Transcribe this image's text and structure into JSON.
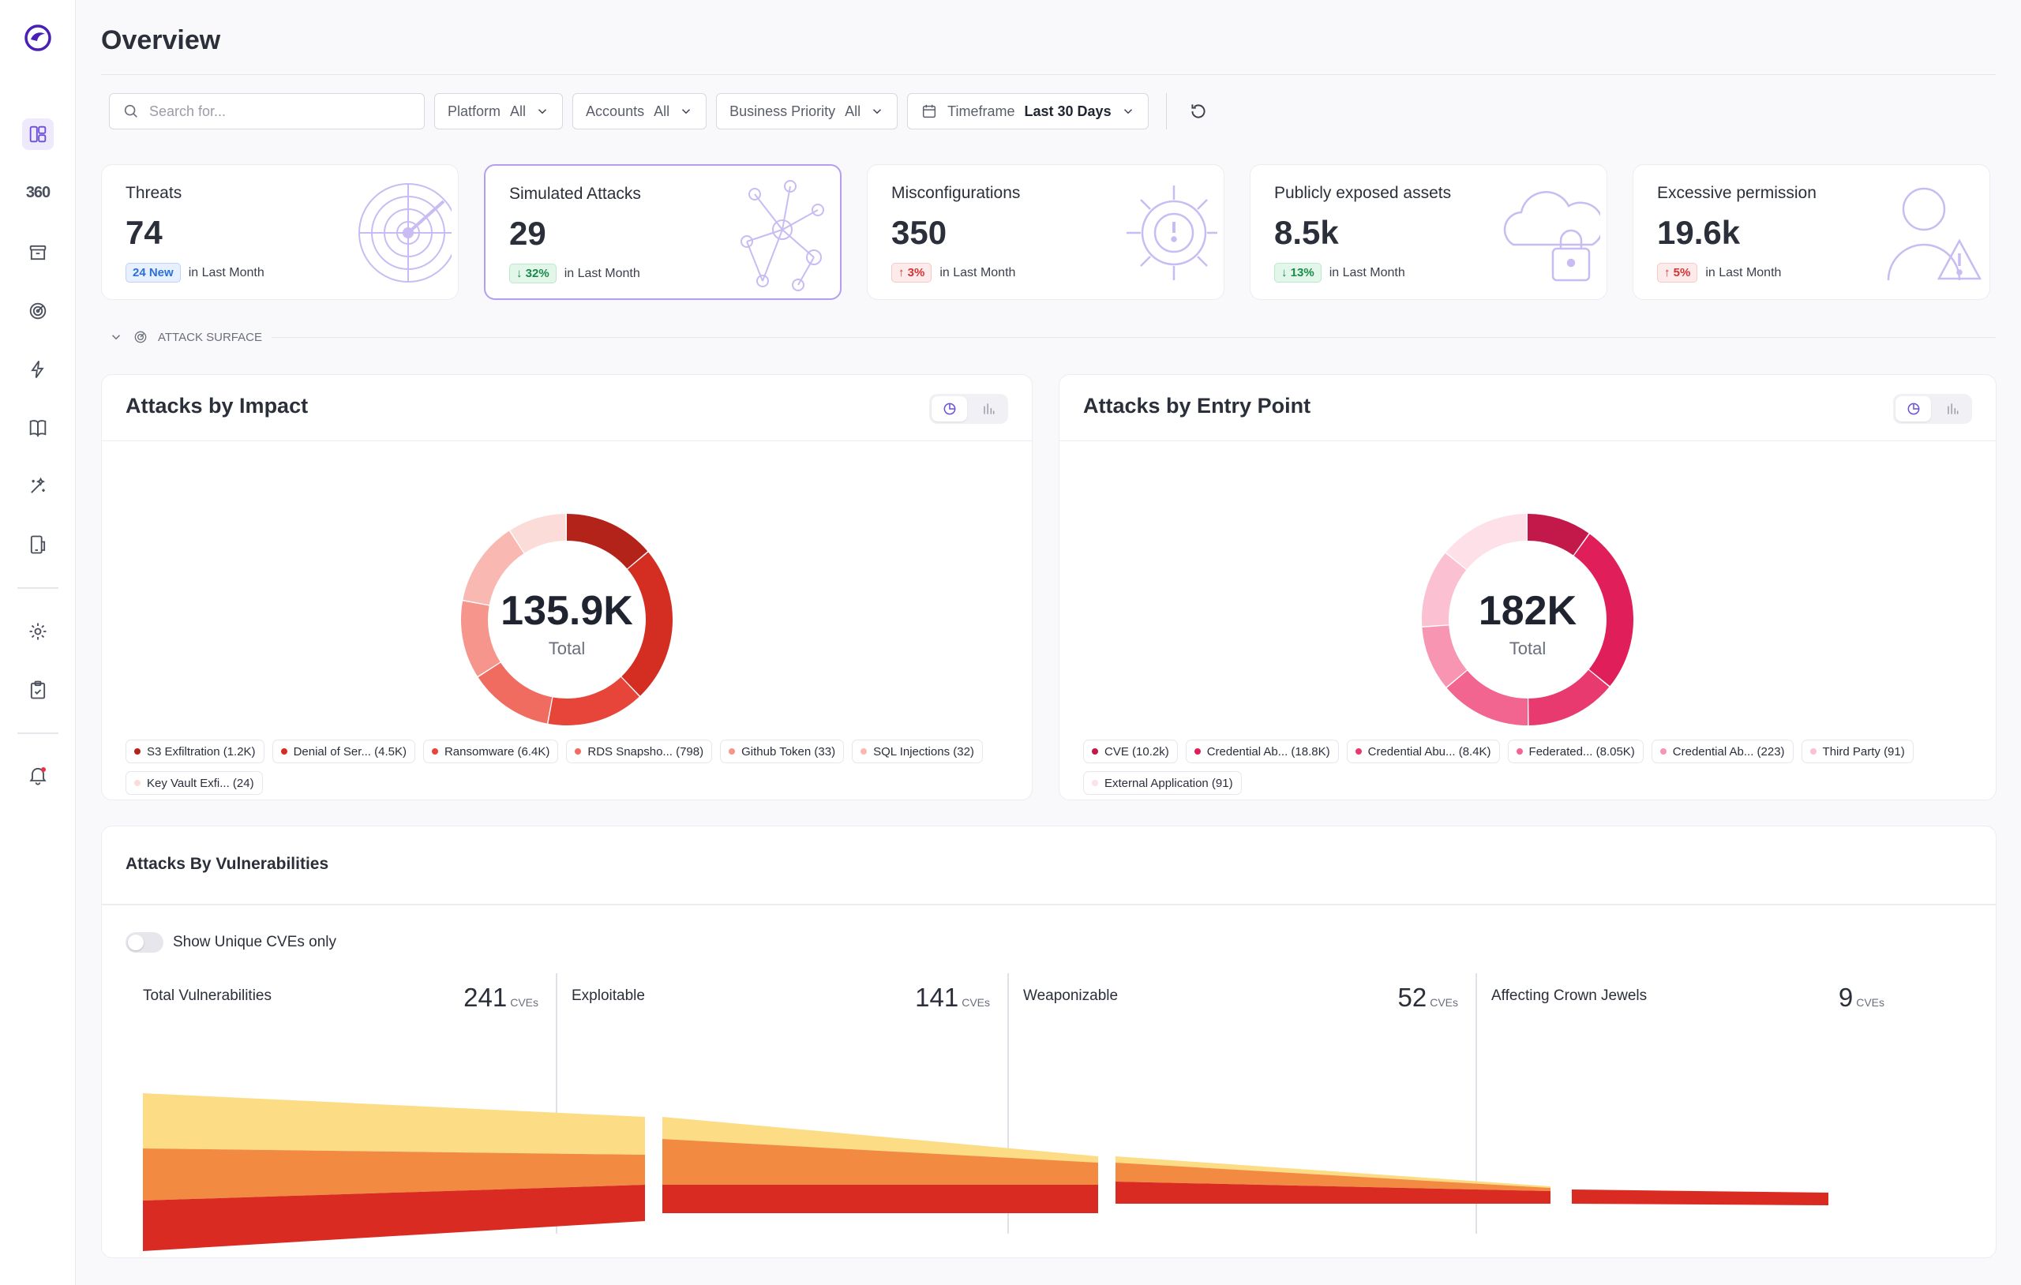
{
  "app": {
    "page_title": "Overview"
  },
  "sidebar": {
    "items": [
      {
        "name": "dashboard-icon",
        "active": true
      },
      {
        "name": "360-icon",
        "label": "360"
      },
      {
        "name": "archive-icon"
      },
      {
        "name": "radar-icon"
      },
      {
        "name": "lightning-icon"
      },
      {
        "name": "book-icon"
      },
      {
        "name": "magic-wand-icon"
      },
      {
        "name": "device-icon"
      },
      {
        "name": "gear-icon"
      },
      {
        "name": "clipboard-check-icon"
      },
      {
        "name": "bell-icon"
      }
    ]
  },
  "filters": {
    "search_placeholder": "Search for...",
    "platform": {
      "label": "Platform",
      "value": "All"
    },
    "accounts": {
      "label": "Accounts",
      "value": "All"
    },
    "priority": {
      "label": "Business Priority",
      "value": "All"
    },
    "timeframe": {
      "label": "Timeframe",
      "value": "Last 30 Days"
    }
  },
  "cards": [
    {
      "title": "Threats",
      "value": "74",
      "badge": "24 New",
      "badge_kind": "blue",
      "foot": "in Last Month",
      "icon": "radar-illustration"
    },
    {
      "title": "Simulated Attacks",
      "value": "29",
      "badge": "32%",
      "badge_kind": "green",
      "arrow": "down",
      "foot": "in Last Month",
      "icon": "network-illustration",
      "selected": true
    },
    {
      "title": "Misconfigurations",
      "value": "350",
      "badge": "3%",
      "badge_kind": "red",
      "arrow": "up",
      "foot": "in Last Month",
      "icon": "gear-alert-illustration"
    },
    {
      "title": "Publicly exposed assets",
      "value": "8.5k",
      "badge": "13%",
      "badge_kind": "green",
      "arrow": "down",
      "foot": "in Last Month",
      "icon": "cloud-lock-illustration"
    },
    {
      "title": "Excessive permission",
      "value": "19.6k",
      "badge": "5%",
      "badge_kind": "red",
      "arrow": "up",
      "foot": "in Last Month",
      "icon": "user-warning-illustration"
    }
  ],
  "section": {
    "label": "ATTACK SURFACE"
  },
  "impact": {
    "title": "Attacks by Impact",
    "total": "135.9K",
    "total_label": "Total",
    "legend": [
      {
        "label": "S3 Exfiltration (1.2K)",
        "color": "#b3231a"
      },
      {
        "label": "Denial of Ser... (4.5K)",
        "color": "#d42e22"
      },
      {
        "label": "Ransomware (6.4K)",
        "color": "#e8453a"
      },
      {
        "label": "RDS Snapsho... (798)",
        "color": "#f06c60"
      },
      {
        "label": "Github Token (33)",
        "color": "#f5958c"
      },
      {
        "label": "SQL Injections (32)",
        "color": "#f9b9b2"
      },
      {
        "label": "Key Vault Exfi... (24)",
        "color": "#fcdcd8"
      }
    ]
  },
  "entry": {
    "title": "Attacks by Entry Point",
    "total": "182K",
    "total_label": "Total",
    "legend": [
      {
        "label": "CVE (10.2k)",
        "color": "#c2184a"
      },
      {
        "label": "Credential Ab... (18.8K)",
        "color": "#e01e5a"
      },
      {
        "label": "Credential Abu... (8.4K)",
        "color": "#e83a6e"
      },
      {
        "label": "Federated... (8.05K)",
        "color": "#f26590"
      },
      {
        "label": "Credential Ab... (223)",
        "color": "#f795b3"
      },
      {
        "label": "Third Party (91)",
        "color": "#fbc0d1"
      },
      {
        "label": "External Application (91)",
        "color": "#fde0e8"
      }
    ]
  },
  "vuln": {
    "title": "Attacks By Vulnerabilities",
    "toggle_label": "Show Unique CVEs only",
    "unit": "CVEs",
    "stages": [
      {
        "label": "Total Vulnerabilities",
        "count": "241"
      },
      {
        "label": "Exploitable",
        "count": "141"
      },
      {
        "label": "Weaponizable",
        "count": "52"
      },
      {
        "label": "Affecting  Crown Jewels",
        "count": "9"
      }
    ],
    "colors": {
      "yellow": "#fcdc84",
      "orange": "#f28a42",
      "red": "#d92b22"
    }
  },
  "colors": {
    "accent": "#6b4fd8"
  }
}
